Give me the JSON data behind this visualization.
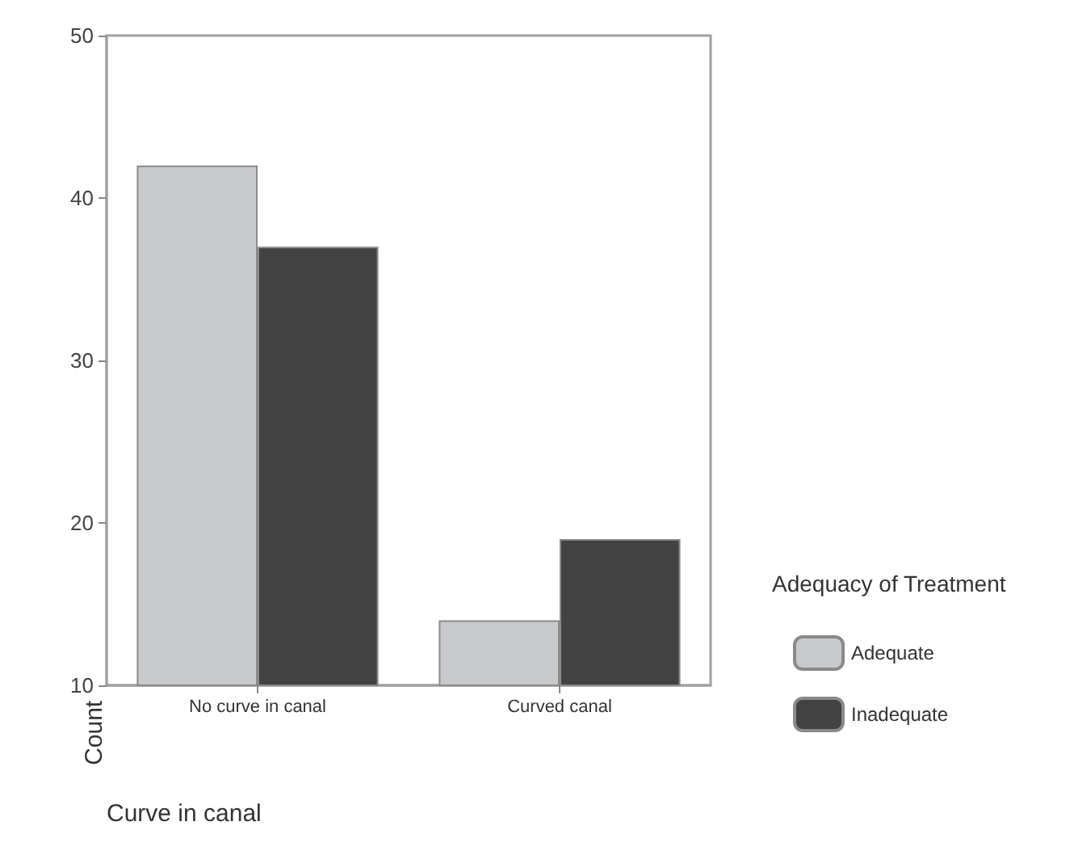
{
  "chart_data": {
    "type": "bar",
    "xlabel": "Curve in canal",
    "ylabel": "Count",
    "legend_title": "Adequacy of Treatment",
    "categories": [
      "No curve in canal",
      "Curved canal"
    ],
    "series": [
      {
        "name": "Adequate",
        "color": "#c8c9cb",
        "values": [
          42,
          14
        ]
      },
      {
        "name": "Inadequate",
        "color": "#424242",
        "values": [
          37,
          19
        ]
      }
    ],
    "ylim": [
      10,
      50
    ],
    "yticks": [
      10,
      20,
      30,
      40,
      50
    ],
    "grid": false,
    "legend": "right"
  }
}
